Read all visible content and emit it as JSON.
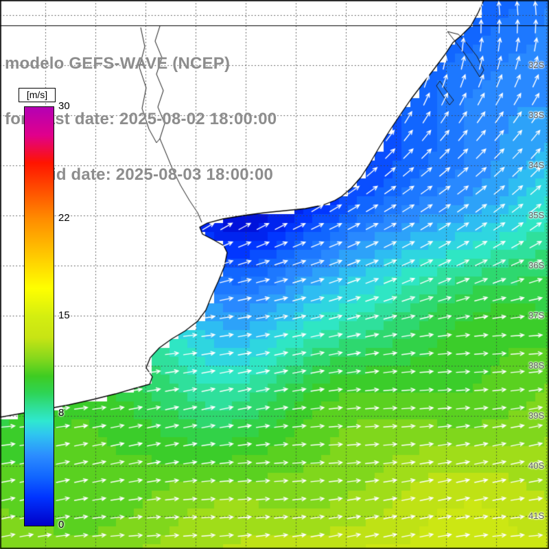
{
  "header": {
    "line1": "modelo GEFS-WAVE (NCEP)",
    "line2": "forecast date: 2025-08-02 18:00:00",
    "line3": "valid date: 2025-08-03 18:00:00",
    "text_color": "#8d8d8d"
  },
  "colorbar": {
    "unit_label": "[m/s]",
    "min": 0,
    "max": 30,
    "tick_labels": [
      "30",
      "22",
      "15",
      "8",
      "0"
    ],
    "tick_values": [
      30,
      22,
      15,
      8,
      0
    ],
    "stops": [
      {
        "v": 0,
        "c": "#0000c8"
      },
      {
        "v": 2,
        "c": "#0033ff"
      },
      {
        "v": 3.5,
        "c": "#1166ff"
      },
      {
        "v": 5,
        "c": "#2b8cff"
      },
      {
        "v": 6.5,
        "c": "#2fc4f0"
      },
      {
        "v": 7.5,
        "c": "#2fe8d0"
      },
      {
        "v": 8.5,
        "c": "#2fdf96"
      },
      {
        "v": 9.5,
        "c": "#2ed455"
      },
      {
        "v": 10.7,
        "c": "#3ecc22"
      },
      {
        "v": 12,
        "c": "#86d81c"
      },
      {
        "v": 13.5,
        "c": "#c8e414"
      },
      {
        "v": 15,
        "c": "#d4ee10"
      },
      {
        "v": 17,
        "c": "#ffff00"
      },
      {
        "v": 22,
        "c": "#ff8c00"
      },
      {
        "v": 26,
        "c": "#ff1400"
      },
      {
        "v": 28,
        "c": "#e0008c"
      },
      {
        "v": 30,
        "c": "#b400b4"
      }
    ]
  },
  "map": {
    "lat_labels": [
      "32S",
      "33S",
      "34S",
      "35S",
      "36S",
      "37S",
      "38S",
      "39S",
      "40S",
      "41S"
    ],
    "land_color": "#ffffff",
    "coast_color": "#000000",
    "grid_color": "#3c3c3c",
    "arrow_color": "#ffffff",
    "frame_color": "#000000"
  }
}
